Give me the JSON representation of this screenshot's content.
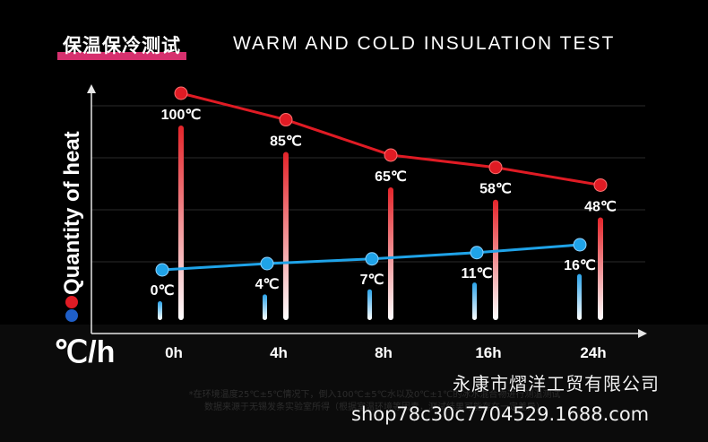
{
  "header": {
    "title_cn": "保温保冷测试",
    "title_en": "WARM AND COLD INSULATION TEST"
  },
  "chart_data": {
    "type": "line",
    "ylabel": "Quantity of heat",
    "unit_label": "℃/h",
    "categories": [
      "0h",
      "4h",
      "8h",
      "16h",
      "24h"
    ],
    "series": [
      {
        "values": [
          100,
          85,
          65,
          58,
          48
        ],
        "labels": [
          "100℃",
          "85℃",
          "65℃",
          "58℃",
          "48℃"
        ],
        "color": "#e01b24"
      },
      {
        "values": [
          0,
          4,
          7,
          11,
          16
        ],
        "labels": [
          "0℃",
          "4℃",
          "7℃",
          "11℃",
          "16℃"
        ],
        "color": "#1fa3e8"
      }
    ],
    "grid": true
  },
  "footer": {
    "note_line1": "*在环境温度25℃±5℃情况下，倒入100℃±5℃水以及0℃±1℃的冰水混合物进行测温测试",
    "note_line2": "数据来源于无锡发条实验室所得（根据室温环境等因素，测试结果可能存在一定差异）",
    "watermark_company": "永康市熠洋工贸有限公司",
    "watermark_url": "shop78c30c7704529.1688.com"
  }
}
